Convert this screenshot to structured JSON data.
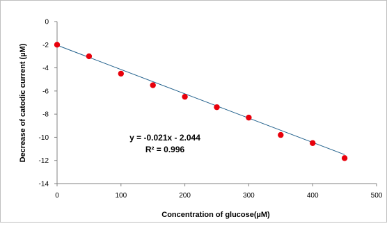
{
  "chart_data": {
    "type": "scatter",
    "xlabel": "Concentration of glucose(µM)",
    "ylabel": "Decrease of catodic  current  (µM)",
    "xlim": [
      0,
      500
    ],
    "ylim": [
      -14,
      0
    ],
    "x_ticks": [
      0,
      100,
      200,
      300,
      400,
      500
    ],
    "y_ticks": [
      0,
      -2,
      -4,
      -6,
      -8,
      -10,
      -12,
      -14
    ],
    "grid": false,
    "legend": "none",
    "series": [
      {
        "x": [
          0,
          50,
          100,
          150,
          200,
          250,
          300,
          350,
          400,
          450
        ],
        "y": [
          -2.0,
          -3.0,
          -4.5,
          -5.5,
          -6.5,
          -7.4,
          -8.3,
          -9.8,
          -10.5,
          -11.8
        ],
        "color": "#e8000b"
      }
    ],
    "trendline": {
      "slope": -0.021,
      "intercept": -2.044,
      "x_range": [
        0,
        450
      ],
      "color": "#1f5f8b"
    },
    "annotations": {
      "equation": "y = -0.021x - 2.044",
      "r_squared": "R² = 0.996"
    }
  }
}
